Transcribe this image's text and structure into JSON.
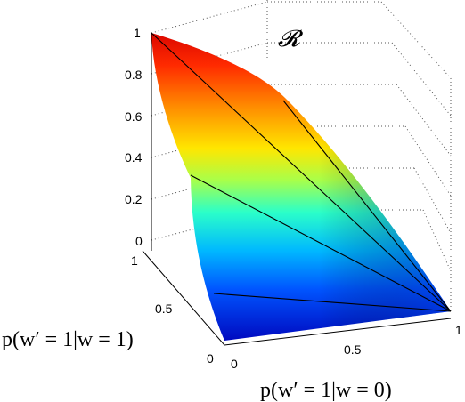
{
  "chart_data": {
    "type": "surface",
    "region_label": "𝓡",
    "xlabel": "p(w′ = 1|w = 0)",
    "ylabel": "p(w′ = 1|w = 1)",
    "zlabel": "",
    "xlim": [
      0,
      1
    ],
    "ylim": [
      0,
      1
    ],
    "zlim": [
      0,
      1
    ],
    "x_ticks": [
      "0",
      "0.5",
      "1"
    ],
    "y_ticks": [
      "0",
      "0.5",
      "1"
    ],
    "z_ticks": [
      "0",
      "0.2",
      "0.4",
      "0.6",
      "0.8",
      "1"
    ],
    "colormap": "jet",
    "grid": true,
    "surface": {
      "description_of_values": "z-axis value over region bounded by corners (x,y)=(0,1) z=1, (1,1) z=0, (0,0) z=0",
      "corners": [
        {
          "x": 0,
          "y": 1,
          "z": 1
        },
        {
          "x": 1,
          "y": 1,
          "z": 0
        },
        {
          "x": 0,
          "y": 0,
          "z": 0
        }
      ]
    }
  }
}
